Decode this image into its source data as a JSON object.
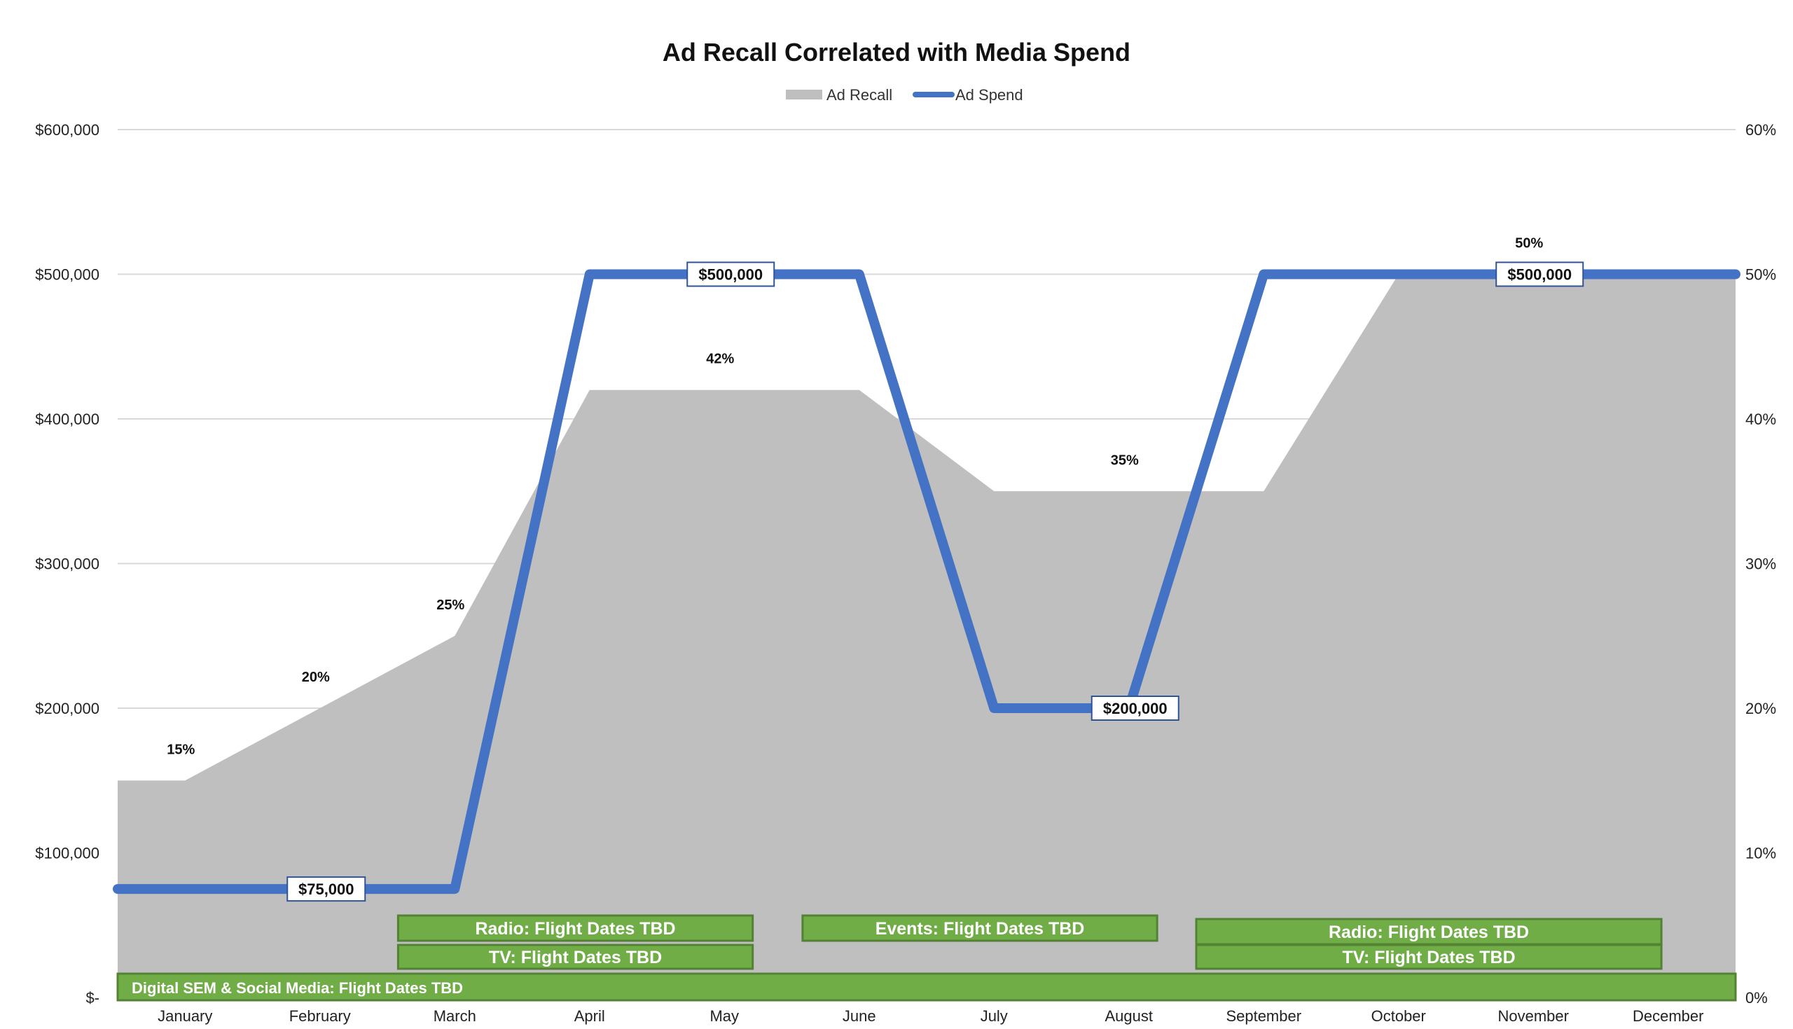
{
  "chart_data": {
    "type": "area+line",
    "title": "Ad Recall Correlated with Media Spend",
    "categories": [
      "January",
      "February",
      "March",
      "April",
      "May",
      "June",
      "July",
      "August",
      "September",
      "October",
      "November",
      "December"
    ],
    "series": [
      {
        "name": "Ad Recall",
        "kind": "area",
        "axis": "right",
        "values": [
          0.15,
          0.2,
          0.25,
          0.42,
          0.42,
          0.42,
          0.35,
          0.35,
          0.35,
          0.5,
          0.5,
          0.5
        ],
        "color": "#bfbfbf"
      },
      {
        "name": "Ad Spend",
        "kind": "line",
        "axis": "left",
        "values": [
          75000,
          75000,
          75000,
          500000,
          500000,
          500000,
          200000,
          200000,
          500000,
          500000,
          500000,
          500000
        ],
        "color": "#4472c4"
      }
    ],
    "left_axis": {
      "ylim": [
        0,
        600000
      ],
      "ticks": [
        0,
        100000,
        200000,
        300000,
        400000,
        500000,
        600000
      ],
      "tick_labels": [
        "$-",
        "$100,000",
        "$200,000",
        "$300,000",
        "$400,000",
        "$500,000",
        "$600,000"
      ]
    },
    "right_axis": {
      "ylim": [
        0,
        0.6
      ],
      "tick_labels": [
        "0%",
        "10%",
        "20%",
        "30%",
        "40%",
        "50%",
        "60%"
      ]
    },
    "recall_labels": [
      {
        "month": "January",
        "text": "15%"
      },
      {
        "month": "February",
        "text": "20%"
      },
      {
        "month": "March",
        "text": "25%"
      },
      {
        "month": "May",
        "text": "42%"
      },
      {
        "month": "August",
        "text": "35%"
      },
      {
        "month": "November",
        "text": "50%"
      }
    ],
    "spend_labels": [
      {
        "month": "February",
        "text": "$75,000"
      },
      {
        "month": "May",
        "text": "$500,000"
      },
      {
        "month": "August",
        "text": "$200,000"
      },
      {
        "month": "November",
        "text": "$500,000"
      }
    ],
    "flight_bars": [
      {
        "label": "Radio: Flight Dates TBD",
        "start": "March",
        "end": "May",
        "row": 1
      },
      {
        "label": "TV: Flight Dates TBD",
        "start": "March",
        "end": "May",
        "row": 2
      },
      {
        "label": "Events: Flight Dates TBD",
        "start": "June",
        "end": "August",
        "row": 1
      },
      {
        "label": "Radio: Flight Dates TBD",
        "start": "September",
        "end": "December",
        "row": 1
      },
      {
        "label": "TV: Flight Dates TBD",
        "start": "September",
        "end": "December",
        "row": 2
      },
      {
        "label": "Digital SEM & Social Media: Flight Dates TBD",
        "start": "January",
        "end": "December",
        "row": 3
      }
    ],
    "grid": true,
    "legend": "top-center"
  }
}
